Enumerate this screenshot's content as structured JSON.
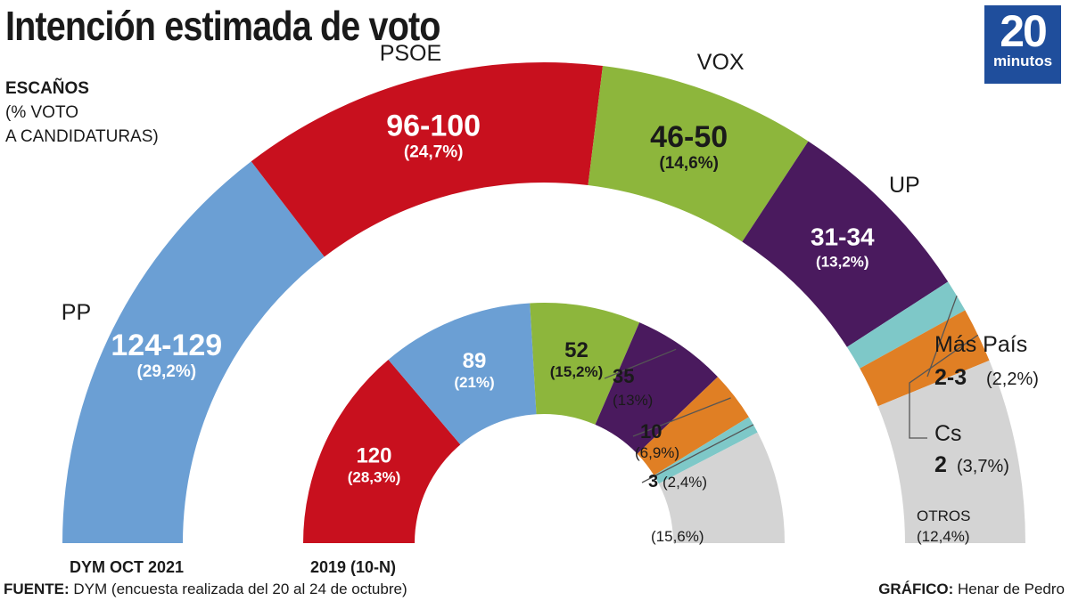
{
  "header": {
    "title": "Intención estimada de voto",
    "subtitle_line1": "ESCAÑOS",
    "subtitle_line2": "(% VOTO",
    "subtitle_line3": "A CANDIDATURAS)",
    "logo_number": "20",
    "logo_word": "minutos"
  },
  "footer": {
    "source_label": "FUENTE:",
    "source_text": "DYM (encuesta realizada del 20 al 24 de octubre)",
    "credit_label": "GRÁFICO:",
    "credit_text": "Henar de Pedro"
  },
  "chart_data": [
    {
      "type": "pie",
      "subtype": "semicircle",
      "title": "DYM OCT 2021",
      "series": [
        {
          "name": "PP",
          "share": 29.2,
          "value_label": "124-129",
          "pct_label": "(29,2%)",
          "color": "#6b9fd4"
        },
        {
          "name": "PSOE",
          "share": 24.7,
          "value_label": "96-100",
          "pct_label": "(24,7%)",
          "color": "#c8101e"
        },
        {
          "name": "VOX",
          "share": 14.6,
          "value_label": "46-50",
          "pct_label": "(14,6%)",
          "color": "#8db63c"
        },
        {
          "name": "UP",
          "share": 13.2,
          "value_label": "31-34",
          "pct_label": "(13,2%)",
          "color": "#4a1a5e"
        },
        {
          "name": "Más País",
          "share": 2.2,
          "value_label": "2-3",
          "pct_label": "(2,2%)",
          "color": "#7ec8c8"
        },
        {
          "name": "Cs",
          "share": 3.7,
          "value_label": "2",
          "pct_label": "(3,7%)",
          "color": "#e07f24"
        },
        {
          "name": "OTROS",
          "share": 12.4,
          "value_label": "",
          "pct_label": "(12,4%)",
          "color": "#d4d4d4"
        }
      ]
    },
    {
      "type": "pie",
      "subtype": "semicircle",
      "title": "2019 (10-N)",
      "series": [
        {
          "party": "PSOE",
          "share": 28.3,
          "value_label": "120",
          "pct_label": "(28,3%)",
          "color": "#c8101e"
        },
        {
          "party": "PP",
          "share": 21.0,
          "value_label": "89",
          "pct_label": "(21%)",
          "color": "#6b9fd4"
        },
        {
          "party": "VOX",
          "share": 15.2,
          "value_label": "52",
          "pct_label": "(15,2%)",
          "color": "#8db63c"
        },
        {
          "party": "UP",
          "share": 13.0,
          "value_label": "35",
          "pct_label": "(13%)",
          "color": "#4a1a5e"
        },
        {
          "party": "Cs",
          "share": 6.9,
          "value_label": "10",
          "pct_label": "(6,9%)",
          "color": "#e07f24"
        },
        {
          "party": "Más País",
          "share": 2.4,
          "value_label": "3",
          "pct_label": "(2,4%)",
          "color": "#7ec8c8"
        },
        {
          "party": "OTROS",
          "share": 15.6,
          "value_label": "",
          "pct_label": "(15,6%)",
          "color": "#d4d4d4"
        }
      ]
    }
  ]
}
